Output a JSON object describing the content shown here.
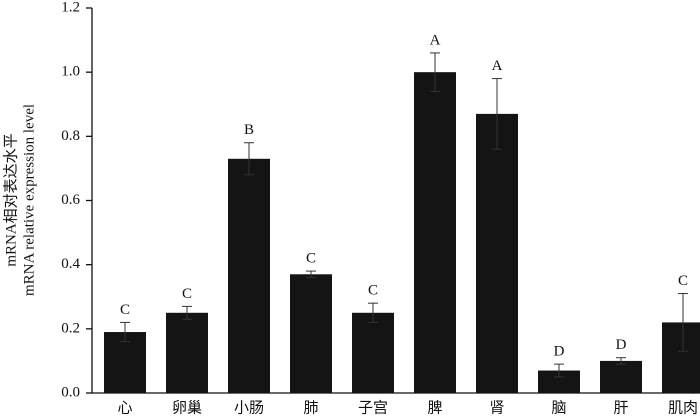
{
  "chart_data": {
    "type": "bar",
    "y_label_lines": [
      "mRNA相对表达水平",
      "mRNA relative expression level"
    ],
    "categories": [
      "心",
      "卵巢",
      "小肠",
      "肺",
      "子宫",
      "脾",
      "肾",
      "脑",
      "肝",
      "肌肉"
    ],
    "values": [
      0.19,
      0.25,
      0.73,
      0.37,
      0.25,
      1.0,
      0.87,
      0.07,
      0.1,
      0.22
    ],
    "errors": [
      0.03,
      0.02,
      0.05,
      0.01,
      0.03,
      0.06,
      0.11,
      0.02,
      0.01,
      0.09
    ],
    "annotations": [
      "C",
      "C",
      "B",
      "C",
      "C",
      "A",
      "A",
      "D",
      "D",
      "C"
    ],
    "color": "#141414",
    "ylim": [
      0,
      1.2
    ],
    "yticks": [
      {
        "value": 0,
        "label": "0.0"
      },
      0.2,
      0.4,
      0.6,
      0.8,
      {
        "value": 1,
        "label": "1.0"
      },
      1.2
    ],
    "grid": false
  }
}
